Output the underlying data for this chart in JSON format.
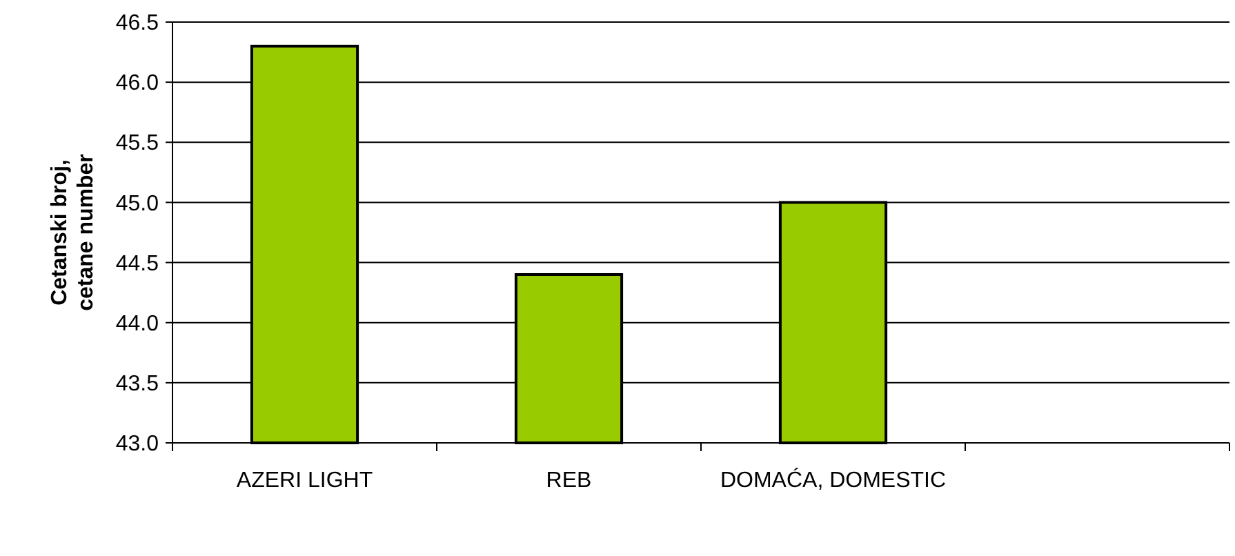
{
  "chart_data": {
    "type": "bar",
    "ylabel": "Cetanski broj, cetane number",
    "categories": [
      "AZERI LIGHT",
      "REB",
      "DOMAĆA, DOMESTIC",
      null
    ],
    "values": [
      46.3,
      44.4,
      45.0,
      null
    ],
    "color": "#99cc00",
    "ylim": [
      43.0,
      46.5
    ],
    "yticks": [
      {
        "value": 43,
        "label": "43.0"
      },
      43.5,
      {
        "value": 44,
        "label": "44.0"
      },
      44.5,
      {
        "value": 45,
        "label": "45.0"
      },
      45.5,
      {
        "value": 46,
        "label": "46.0"
      },
      46.5
    ],
    "grid": "y"
  }
}
